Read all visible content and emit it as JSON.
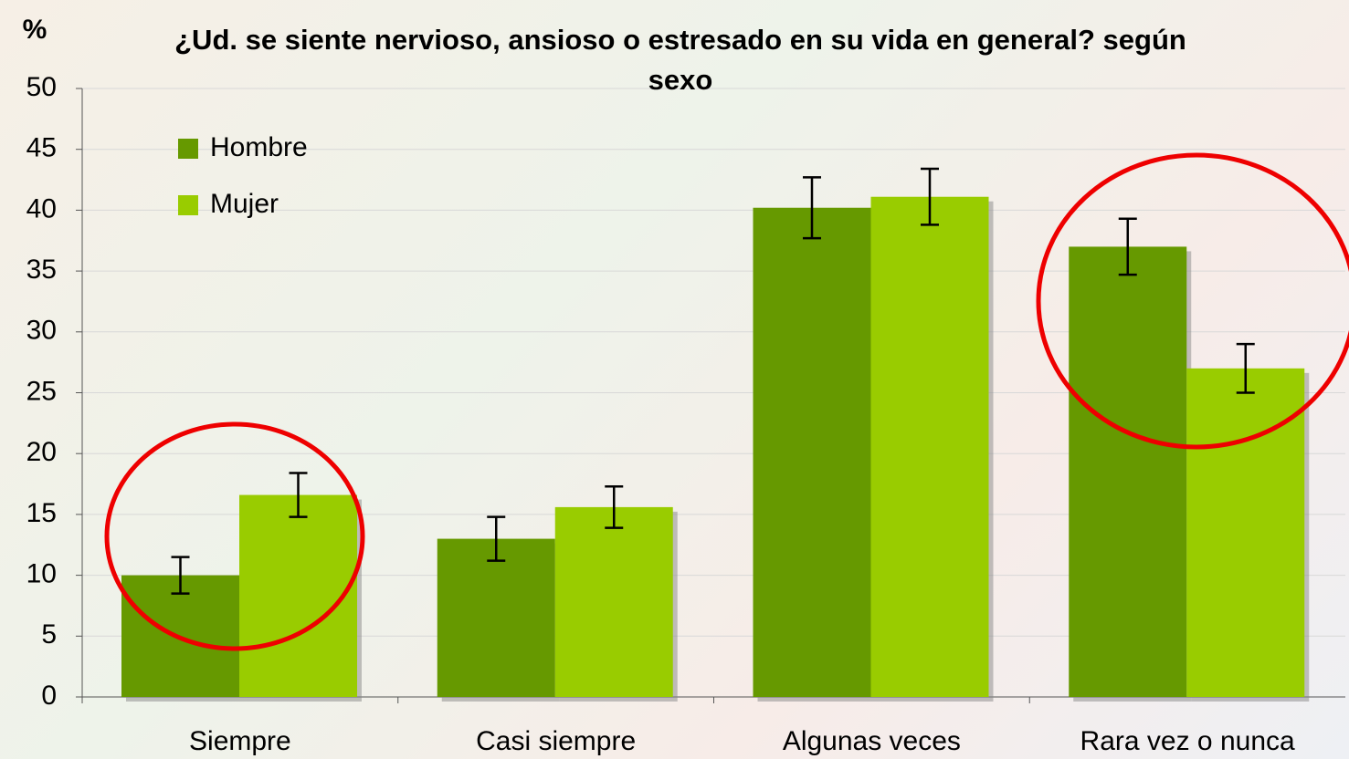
{
  "chart_data": {
    "type": "bar",
    "title": "¿Ud. se siente nervioso, ansioso o estresado en su vida en general? según sexo",
    "y_label": "%",
    "categories": [
      "Siempre",
      "Casi siempre",
      "Algunas veces",
      "Rara vez o nunca"
    ],
    "series": [
      {
        "name": "Hombre",
        "color": "#669900",
        "values": [
          10.0,
          13.0,
          40.2,
          37.0
        ],
        "errors": [
          1.5,
          1.8,
          2.5,
          2.3
        ]
      },
      {
        "name": "Mujer",
        "color": "#99cc00",
        "values": [
          16.6,
          15.6,
          41.1,
          27.0
        ],
        "errors": [
          1.8,
          1.7,
          2.3,
          2.0
        ]
      }
    ],
    "ylim": [
      0,
      50
    ],
    "yticks": [
      0,
      5,
      10,
      15,
      20,
      25,
      30,
      35,
      40,
      45,
      50
    ],
    "grid": true,
    "legend": "top-left"
  }
}
